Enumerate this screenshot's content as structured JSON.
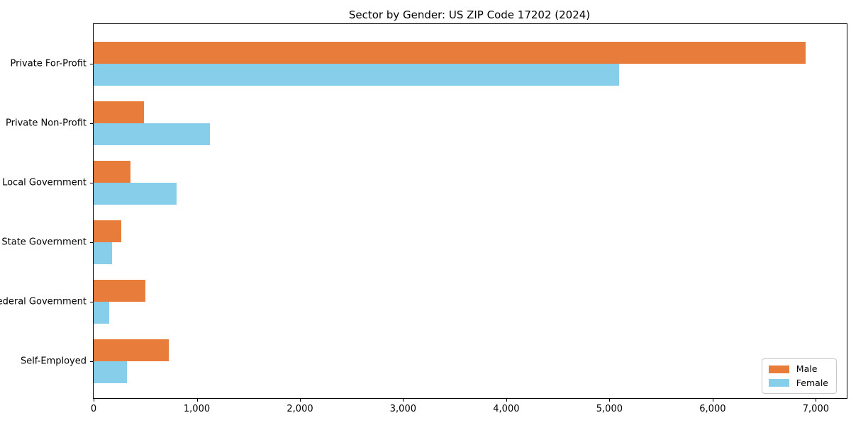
{
  "chart_data": {
    "type": "bar",
    "orientation": "horizontal",
    "title": "Sector by Gender: US ZIP Code 17202 (2024)",
    "categories": [
      "Private For-Profit",
      "Private Non-Profit",
      "Local Government",
      "State Government",
      "Federal Government",
      "Self-Employed"
    ],
    "series": [
      {
        "name": "Male",
        "color": "#e87d3b",
        "values": [
          6900,
          490,
          355,
          270,
          500,
          730
        ]
      },
      {
        "name": "Female",
        "color": "#87ceeb",
        "values": [
          5090,
          1130,
          805,
          180,
          150,
          320
        ]
      }
    ],
    "xlabel": "",
    "ylabel": "",
    "xlim": [
      0,
      7300
    ],
    "xticks": [
      0,
      1000,
      2000,
      3000,
      4000,
      5000,
      6000,
      7000
    ],
    "xtick_labels": [
      "0",
      "1,000",
      "2,000",
      "3,000",
      "4,000",
      "5,000",
      "6,000",
      "7,000"
    ],
    "grid": false,
    "legend_position": "lower right",
    "plot_border_color": "#000000",
    "background_color": "#ffffff"
  }
}
